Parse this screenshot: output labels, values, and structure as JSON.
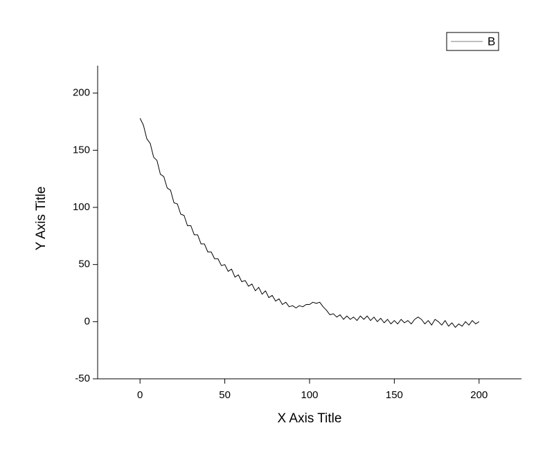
{
  "chart_data": {
    "type": "line",
    "x_label": "X Axis Title",
    "y_label": "Y Axis Title",
    "xlim": [
      -25,
      225
    ],
    "ylim": [
      -50,
      224
    ],
    "xticks": [
      0,
      50,
      100,
      150,
      200
    ],
    "yticks": [
      -50,
      0,
      50,
      100,
      150,
      200
    ],
    "legend": "top-right",
    "x": [
      0,
      2,
      4,
      6,
      8,
      10,
      12,
      14,
      16,
      18,
      20,
      22,
      24,
      26,
      28,
      30,
      32,
      34,
      36,
      38,
      40,
      42,
      44,
      46,
      48,
      50,
      52,
      54,
      56,
      58,
      60,
      62,
      64,
      66,
      68,
      70,
      72,
      74,
      76,
      78,
      80,
      82,
      84,
      86,
      88,
      90,
      92,
      94,
      96,
      98,
      100,
      102,
      104,
      106,
      108,
      110,
      112,
      114,
      116,
      118,
      120,
      122,
      124,
      126,
      128,
      130,
      132,
      134,
      136,
      138,
      140,
      142,
      144,
      146,
      148,
      150,
      152,
      154,
      156,
      158,
      160,
      162,
      164,
      166,
      168,
      170,
      172,
      174,
      176,
      178,
      180,
      182,
      184,
      186,
      188,
      190,
      192,
      194,
      196,
      198,
      200
    ],
    "series": [
      {
        "name": "B",
        "color": "#000000",
        "values": [
          178,
          172,
          160,
          156,
          144,
          141,
          129,
          127,
          117,
          115,
          104,
          103,
          94,
          93,
          84,
          84,
          76,
          76,
          68,
          68,
          61,
          61,
          55,
          55,
          49,
          50,
          44,
          46,
          39,
          41,
          35,
          36,
          31,
          33,
          27,
          30,
          24,
          27,
          21,
          23,
          18,
          20,
          15,
          17,
          13,
          14,
          12,
          14,
          13,
          15,
          15,
          17,
          16,
          17,
          13,
          10,
          6,
          7,
          4,
          6,
          2,
          5,
          2,
          4,
          1,
          5,
          2,
          5,
          1,
          4,
          0,
          3,
          -1,
          2,
          -2,
          1,
          -2,
          2,
          -1,
          1,
          -2,
          2,
          4,
          2,
          -2,
          1,
          -3,
          2,
          0,
          -3,
          1,
          -4,
          -1,
          -5,
          -2,
          -4,
          0,
          -3,
          1,
          -2,
          0
        ]
      }
    ]
  }
}
